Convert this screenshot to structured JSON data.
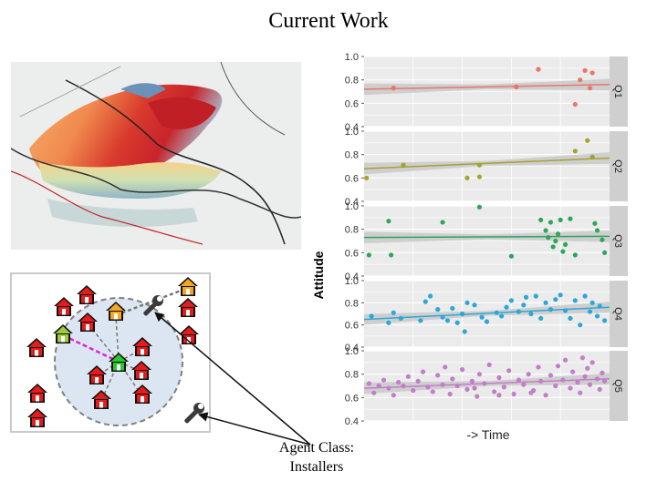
{
  "title": "Current Work",
  "caption": {
    "line1": "Agent Class:",
    "line2": "Installers"
  },
  "icons": {
    "house": "house-icon",
    "installer": "wrench-icon"
  },
  "colors": {
    "house_red": "#e51c1c",
    "house_orange": "#f5a623",
    "house_lime": "#9ccc3c",
    "house_green": "#2cc72c",
    "link_magenta": "#dd22dd",
    "radius_fill": "#dce6f2"
  },
  "chart_data": {
    "type": "scatter",
    "ylabel": "Attitude",
    "xlabel": "-> Time",
    "ylim": [
      0.4,
      1.0
    ],
    "yticks": [
      "1.0",
      "0.8",
      "0.6",
      "0.4"
    ],
    "grid": true,
    "series": [
      {
        "name": "Q1",
        "color": "#e8766b",
        "trend": [
          0.72,
          0.76
        ],
        "points": [
          [
            0.12,
            0.73
          ],
          [
            0.62,
            0.74
          ],
          [
            0.71,
            0.89
          ],
          [
            0.88,
            0.8
          ],
          [
            0.9,
            0.88
          ],
          [
            0.93,
            0.86
          ],
          [
            0.86,
            0.59
          ],
          [
            0.92,
            0.73
          ]
        ]
      },
      {
        "name": "Q2",
        "color": "#a3a331",
        "trend": [
          0.68,
          0.77
        ],
        "points": [
          [
            0.01,
            0.6
          ],
          [
            0.16,
            0.71
          ],
          [
            0.42,
            0.6
          ],
          [
            0.47,
            0.61
          ],
          [
            0.47,
            0.71
          ],
          [
            0.86,
            0.83
          ],
          [
            0.91,
            0.92
          ],
          [
            0.93,
            0.78
          ]
        ]
      },
      {
        "name": "Q3",
        "color": "#2ea55c",
        "trend": [
          0.73,
          0.74
        ],
        "points": [
          [
            0.02,
            0.58
          ],
          [
            0.1,
            0.87
          ],
          [
            0.11,
            0.58
          ],
          [
            0.32,
            0.86
          ],
          [
            0.47,
            0.99
          ],
          [
            0.6,
            0.57
          ],
          [
            0.72,
            0.88
          ],
          [
            0.74,
            0.79
          ],
          [
            0.75,
            0.73
          ],
          [
            0.76,
            0.86
          ],
          [
            0.77,
            0.65
          ],
          [
            0.78,
            0.7
          ],
          [
            0.79,
            0.76
          ],
          [
            0.8,
            0.88
          ],
          [
            0.81,
            0.61
          ],
          [
            0.82,
            0.67
          ],
          [
            0.84,
            0.89
          ],
          [
            0.86,
            0.58
          ],
          [
            0.94,
            0.85
          ],
          [
            0.95,
            0.79
          ],
          [
            0.97,
            0.71
          ],
          [
            0.98,
            0.6
          ]
        ]
      },
      {
        "name": "Q4",
        "color": "#2ea7d6",
        "trend": [
          0.65,
          0.76
        ],
        "points": [
          [
            0.03,
            0.68
          ],
          [
            0.1,
            0.62
          ],
          [
            0.12,
            0.71
          ],
          [
            0.15,
            0.66
          ],
          [
            0.23,
            0.64
          ],
          [
            0.27,
            0.86
          ],
          [
            0.3,
            0.74
          ],
          [
            0.32,
            0.67
          ],
          [
            0.34,
            0.64
          ],
          [
            0.36,
            0.75
          ],
          [
            0.38,
            0.62
          ],
          [
            0.4,
            0.7
          ],
          [
            0.41,
            0.54
          ],
          [
            0.42,
            0.8
          ],
          [
            0.45,
            0.78
          ],
          [
            0.48,
            0.67
          ],
          [
            0.5,
            0.63
          ],
          [
            0.54,
            0.71
          ],
          [
            0.56,
            0.68
          ],
          [
            0.58,
            0.76
          ],
          [
            0.6,
            0.82
          ],
          [
            0.63,
            0.72
          ],
          [
            0.66,
            0.85
          ],
          [
            0.68,
            0.7
          ],
          [
            0.7,
            0.86
          ],
          [
            0.72,
            0.66
          ],
          [
            0.74,
            0.8
          ],
          [
            0.76,
            0.74
          ],
          [
            0.78,
            0.83
          ],
          [
            0.8,
            0.87
          ],
          [
            0.82,
            0.73
          ],
          [
            0.84,
            0.66
          ],
          [
            0.86,
            0.82
          ],
          [
            0.88,
            0.6
          ],
          [
            0.9,
            0.86
          ],
          [
            0.92,
            0.72
          ],
          [
            0.93,
            0.8
          ],
          [
            0.95,
            0.68
          ],
          [
            0.96,
            0.77
          ],
          [
            0.98,
            0.64
          ],
          [
            0.25,
            0.81
          ],
          [
            0.65,
            0.78
          ]
        ]
      },
      {
        "name": "Q5",
        "color": "#c27ec8",
        "trend": [
          0.68,
          0.76
        ],
        "points": [
          [
            0.02,
            0.72
          ],
          [
            0.04,
            0.64
          ],
          [
            0.06,
            0.7
          ],
          [
            0.08,
            0.75
          ],
          [
            0.1,
            0.68
          ],
          [
            0.12,
            0.62
          ],
          [
            0.14,
            0.73
          ],
          [
            0.16,
            0.7
          ],
          [
            0.18,
            0.78
          ],
          [
            0.2,
            0.66
          ],
          [
            0.22,
            0.74
          ],
          [
            0.24,
            0.82
          ],
          [
            0.26,
            0.69
          ],
          [
            0.28,
            0.65
          ],
          [
            0.3,
            0.79
          ],
          [
            0.32,
            0.71
          ],
          [
            0.33,
            0.86
          ],
          [
            0.35,
            0.63
          ],
          [
            0.36,
            0.76
          ],
          [
            0.38,
            0.7
          ],
          [
            0.4,
            0.84
          ],
          [
            0.42,
            0.67
          ],
          [
            0.44,
            0.74
          ],
          [
            0.46,
            0.61
          ],
          [
            0.47,
            0.8
          ],
          [
            0.49,
            0.72
          ],
          [
            0.51,
            0.88
          ],
          [
            0.53,
            0.65
          ],
          [
            0.55,
            0.77
          ],
          [
            0.57,
            0.69
          ],
          [
            0.59,
            0.83
          ],
          [
            0.61,
            0.63
          ],
          [
            0.63,
            0.75
          ],
          [
            0.65,
            0.71
          ],
          [
            0.67,
            0.8
          ],
          [
            0.69,
            0.66
          ],
          [
            0.71,
            0.86
          ],
          [
            0.72,
            0.74
          ],
          [
            0.74,
            0.62
          ],
          [
            0.76,
            0.79
          ],
          [
            0.78,
            0.7
          ],
          [
            0.79,
            0.87
          ],
          [
            0.81,
            0.75
          ],
          [
            0.82,
            0.92
          ],
          [
            0.84,
            0.68
          ],
          [
            0.85,
            0.82
          ],
          [
            0.87,
            0.73
          ],
          [
            0.88,
            0.64
          ],
          [
            0.9,
            0.78
          ],
          [
            0.91,
            0.85
          ],
          [
            0.92,
            0.71
          ],
          [
            0.93,
            0.9
          ],
          [
            0.95,
            0.76
          ],
          [
            0.96,
            0.67
          ],
          [
            0.97,
            0.81
          ],
          [
            0.98,
            0.74
          ],
          [
            0.45,
            0.68
          ],
          [
            0.55,
            0.62
          ],
          [
            0.68,
            0.64
          ],
          [
            0.89,
            0.94
          ]
        ]
      }
    ]
  }
}
